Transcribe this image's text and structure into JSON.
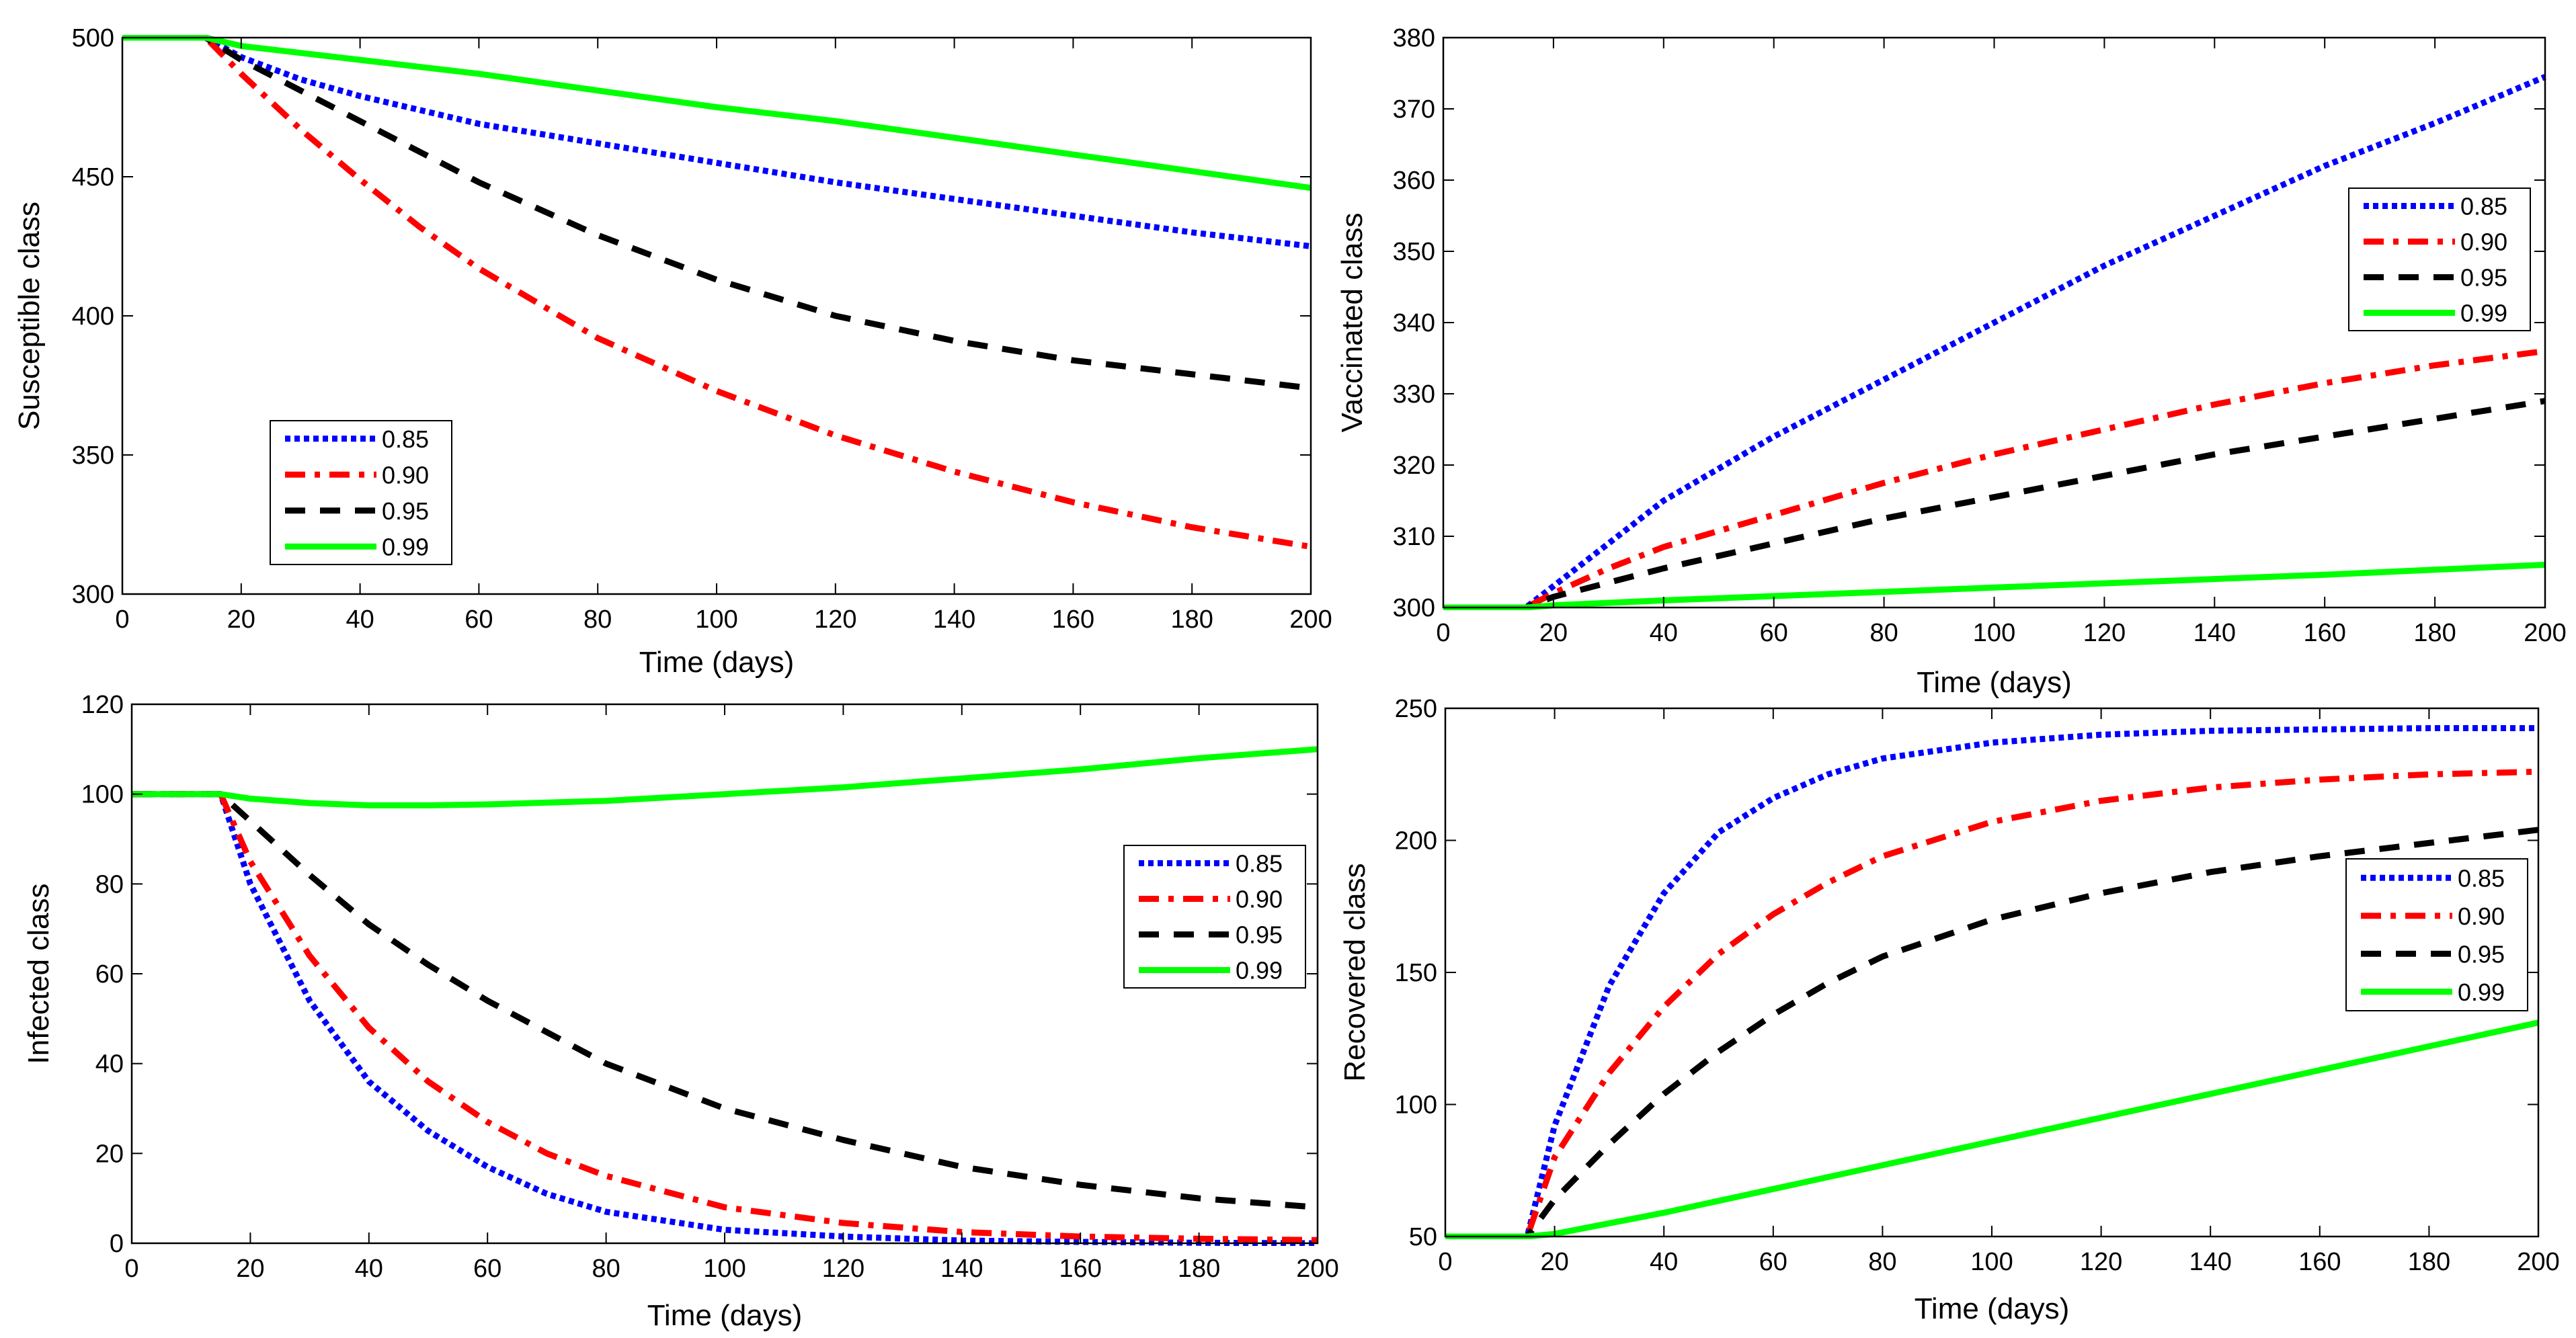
{
  "chart_data": [
    {
      "id": "susceptible",
      "type": "line",
      "xlabel": "Time  (days)",
      "ylabel": "Susceptible class",
      "xlim": [
        0,
        200
      ],
      "ylim": [
        300,
        500
      ],
      "xticks": [
        0,
        20,
        40,
        60,
        80,
        100,
        120,
        140,
        160,
        180,
        200
      ],
      "yticks": [
        300,
        350,
        400,
        450,
        500
      ],
      "legend_position": "bottom-left",
      "series": [
        {
          "name": "0.85",
          "color": "#0000ff",
          "style": "dotted",
          "x": [
            0,
            14,
            20,
            30,
            40,
            50,
            60,
            80,
            100,
            120,
            140,
            160,
            180,
            200
          ],
          "y": [
            500,
            500,
            493,
            485,
            479,
            474,
            469,
            462,
            455,
            448,
            442,
            436,
            430,
            425
          ]
        },
        {
          "name": "0.90",
          "color": "#ff0000",
          "style": "dashdot",
          "x": [
            0,
            14,
            20,
            30,
            40,
            50,
            60,
            80,
            100,
            120,
            140,
            160,
            180,
            200
          ],
          "y": [
            500,
            500,
            487,
            467,
            449,
            432,
            417,
            392,
            373,
            357,
            344,
            333,
            324,
            317
          ]
        },
        {
          "name": "0.95",
          "color": "#000000",
          "style": "dashed",
          "x": [
            0,
            14,
            20,
            30,
            40,
            50,
            60,
            80,
            100,
            120,
            140,
            160,
            180,
            200
          ],
          "y": [
            500,
            500,
            492,
            481,
            470,
            459,
            448,
            429,
            413,
            400,
            391,
            384,
            379,
            374
          ]
        },
        {
          "name": "0.99",
          "color": "#00ff00",
          "style": "solid",
          "x": [
            0,
            14,
            20,
            40,
            60,
            80,
            100,
            120,
            140,
            160,
            180,
            200
          ],
          "y": [
            500,
            500,
            497,
            492,
            487,
            481,
            475,
            470,
            464,
            458,
            452,
            446
          ]
        }
      ]
    },
    {
      "id": "vaccinated",
      "type": "line",
      "xlabel": "Time (days)",
      "ylabel": "Vaccinated class",
      "xlim": [
        0,
        200
      ],
      "ylim": [
        300,
        380
      ],
      "xticks": [
        0,
        20,
        40,
        60,
        80,
        100,
        120,
        140,
        160,
        180,
        200
      ],
      "yticks": [
        300,
        310,
        320,
        330,
        340,
        350,
        360,
        370,
        380
      ],
      "legend_position": "top-right",
      "series": [
        {
          "name": "0.85",
          "color": "#0000ff",
          "style": "dotted",
          "x": [
            0,
            15,
            20,
            30,
            40,
            60,
            80,
            100,
            120,
            140,
            160,
            180,
            200
          ],
          "y": [
            300,
            300,
            303,
            309,
            315,
            324,
            332,
            340,
            348,
            355,
            362,
            368,
            374.5
          ]
        },
        {
          "name": "0.90",
          "color": "#ff0000",
          "style": "dashdot",
          "x": [
            0,
            15,
            20,
            30,
            40,
            60,
            80,
            100,
            120,
            140,
            160,
            180,
            200
          ],
          "y": [
            300,
            300,
            302,
            305.5,
            308.5,
            313,
            317.5,
            321.5,
            325,
            328.5,
            331.5,
            334,
            336
          ]
        },
        {
          "name": "0.95",
          "color": "#000000",
          "style": "dashed",
          "x": [
            0,
            15,
            20,
            30,
            40,
            60,
            80,
            100,
            120,
            140,
            160,
            180,
            200
          ],
          "y": [
            300,
            300,
            301.5,
            303.5,
            305.5,
            309,
            312.5,
            315.5,
            318.5,
            321.5,
            324,
            326.5,
            329
          ]
        },
        {
          "name": "0.99",
          "color": "#00ff00",
          "style": "solid",
          "x": [
            0,
            15,
            20,
            40,
            60,
            80,
            100,
            120,
            140,
            160,
            180,
            200
          ],
          "y": [
            300,
            300,
            300.3,
            301,
            301.6,
            302.2,
            302.8,
            303.4,
            304,
            304.6,
            305.3,
            306
          ]
        }
      ]
    },
    {
      "id": "infected",
      "type": "line",
      "xlabel": "Time (days)",
      "ylabel": "Infected class",
      "xlim": [
        0,
        200
      ],
      "ylim": [
        0,
        120
      ],
      "xticks": [
        0,
        20,
        40,
        60,
        80,
        100,
        120,
        140,
        160,
        180,
        200
      ],
      "yticks": [
        0,
        20,
        40,
        60,
        80,
        100,
        120
      ],
      "legend_position": "right",
      "series": [
        {
          "name": "0.85",
          "color": "#0000ff",
          "style": "dotted",
          "x": [
            0,
            15,
            20,
            30,
            40,
            50,
            60,
            70,
            80,
            100,
            120,
            140,
            160,
            180,
            200
          ],
          "y": [
            100,
            100,
            80,
            54,
            36,
            25,
            17,
            11,
            7,
            3,
            1.5,
            0.6,
            0.3,
            0.1,
            0
          ]
        },
        {
          "name": "0.90",
          "color": "#ff0000",
          "style": "dashdot",
          "x": [
            0,
            15,
            20,
            30,
            40,
            50,
            60,
            70,
            80,
            100,
            120,
            140,
            160,
            180,
            200
          ],
          "y": [
            100,
            100,
            85,
            64,
            48,
            36,
            27,
            20,
            15,
            8,
            4.5,
            2.5,
            1.5,
            1,
            0.7
          ]
        },
        {
          "name": "0.95",
          "color": "#000000",
          "style": "dashed",
          "x": [
            0,
            15,
            20,
            30,
            40,
            50,
            60,
            70,
            80,
            100,
            120,
            140,
            160,
            180,
            200
          ],
          "y": [
            100,
            100,
            94,
            82,
            71,
            62,
            54,
            47,
            40,
            30,
            23,
            17,
            13,
            10,
            8
          ]
        },
        {
          "name": "0.99",
          "color": "#00ff00",
          "style": "solid",
          "x": [
            0,
            15,
            20,
            30,
            40,
            50,
            60,
            80,
            100,
            120,
            140,
            160,
            180,
            200
          ],
          "y": [
            100,
            100,
            99,
            98,
            97.5,
            97.5,
            97.7,
            98.5,
            100,
            101.5,
            103.5,
            105.5,
            108,
            110
          ]
        }
      ]
    },
    {
      "id": "recovered",
      "type": "line",
      "xlabel": "Time (days)",
      "ylabel": "Recovered class",
      "xlim": [
        0,
        200
      ],
      "ylim": [
        50,
        250
      ],
      "xticks": [
        0,
        20,
        40,
        60,
        80,
        100,
        120,
        140,
        160,
        180,
        200
      ],
      "yticks": [
        50,
        100,
        150,
        200,
        250
      ],
      "legend_position": "right",
      "series": [
        {
          "name": "0.85",
          "color": "#0000ff",
          "style": "dotted",
          "x": [
            0,
            15,
            20,
            30,
            40,
            50,
            60,
            70,
            80,
            100,
            120,
            140,
            160,
            180,
            200
          ],
          "y": [
            50,
            50,
            92,
            145,
            180,
            203,
            216,
            225,
            231,
            237,
            240,
            241.5,
            242,
            242.5,
            242.5
          ]
        },
        {
          "name": "0.90",
          "color": "#ff0000",
          "style": "dashdot",
          "x": [
            0,
            15,
            20,
            30,
            40,
            50,
            60,
            70,
            80,
            100,
            120,
            140,
            160,
            180,
            200
          ],
          "y": [
            50,
            50,
            80,
            112,
            137,
            157,
            172,
            184,
            194,
            207,
            215,
            220,
            223,
            225,
            226
          ]
        },
        {
          "name": "0.95",
          "color": "#000000",
          "style": "dashed",
          "x": [
            0,
            15,
            20,
            30,
            40,
            50,
            60,
            70,
            80,
            100,
            120,
            140,
            160,
            180,
            200
          ],
          "y": [
            50,
            50,
            64,
            85,
            104,
            120,
            134,
            146,
            156,
            170,
            180,
            188,
            194,
            199,
            204
          ]
        },
        {
          "name": "0.99",
          "color": "#00ff00",
          "style": "solid",
          "x": [
            0,
            15,
            20,
            40,
            60,
            80,
            100,
            120,
            140,
            160,
            180,
            200
          ],
          "y": [
            50,
            50,
            51,
            59,
            68,
            77,
            86,
            95,
            104,
            113,
            122,
            131
          ]
        }
      ]
    }
  ]
}
